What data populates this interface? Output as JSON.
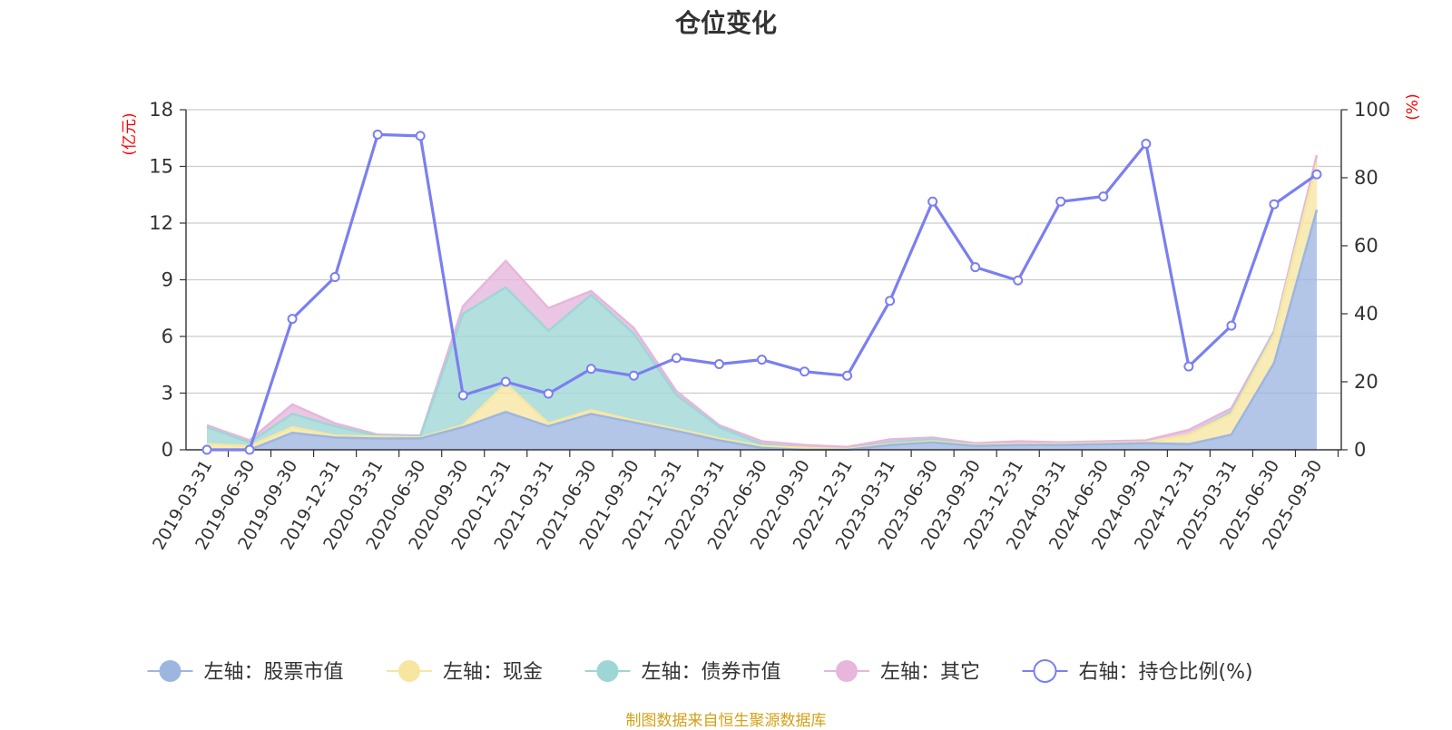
{
  "chart_data": {
    "type": "area",
    "title": "仓位变化",
    "source_note": "制图数据来自恒生聚源数据库",
    "x": [
      "2019-03-31",
      "2019-06-30",
      "2019-09-30",
      "2019-12-31",
      "2020-03-31",
      "2020-06-30",
      "2020-09-30",
      "2020-12-31",
      "2021-03-31",
      "2021-06-30",
      "2021-09-30",
      "2021-12-31",
      "2022-03-31",
      "2022-06-30",
      "2022-09-30",
      "2022-12-31",
      "2023-03-31",
      "2023-06-30",
      "2023-09-30",
      "2023-12-31",
      "2024-03-31",
      "2024-06-30",
      "2024-09-30",
      "2024-12-31",
      "2025-03-31",
      "2025-06-30",
      "2025-09-30"
    ],
    "left_axis": {
      "unit": "(亿元)",
      "ylim": [
        0,
        18
      ],
      "ticks": [
        "0",
        "3",
        "6",
        "9",
        "12",
        "15",
        "18"
      ]
    },
    "right_axis": {
      "unit": "(%)",
      "ylim": [
        0,
        100
      ],
      "ticks": [
        "0",
        "20",
        "40",
        "60",
        "80",
        "100"
      ]
    },
    "stacked": true,
    "grid": true,
    "legend_position": "bottom",
    "series": [
      {
        "name": "左轴：股票市值",
        "axis": "left",
        "kind": "area",
        "color": "#9db6e0",
        "values": [
          0,
          0,
          0.9,
          0.65,
          0.6,
          0.6,
          1.2,
          2.0,
          1.25,
          1.9,
          1.45,
          1.0,
          0.5,
          0.1,
          0.0,
          0.0,
          0.25,
          0.4,
          0.2,
          0.25,
          0.25,
          0.3,
          0.35,
          0.3,
          0.8,
          4.6,
          12.7
        ]
      },
      {
        "name": "左轴：现金",
        "axis": "left",
        "kind": "area",
        "color": "#f7e6a0",
        "values": [
          0.3,
          0.2,
          0.3,
          0.1,
          0.1,
          0.05,
          0.1,
          1.5,
          0.15,
          0.2,
          0.1,
          0.1,
          0.1,
          0.1,
          0.1,
          0.05,
          0.05,
          0.05,
          0.05,
          0.05,
          0.05,
          0.05,
          0.05,
          0.5,
          1.1,
          1.5,
          2.5
        ]
      },
      {
        "name": "左轴：债券市值",
        "axis": "left",
        "kind": "area",
        "color": "#9ed6d6",
        "values": [
          0.9,
          0.2,
          0.7,
          0.5,
          0.05,
          0.05,
          5.9,
          5.1,
          4.9,
          6.1,
          4.6,
          1.8,
          0.6,
          0.1,
          0.0,
          0.0,
          0.1,
          0.1,
          0.0,
          0.0,
          0.0,
          0.0,
          0.0,
          0.0,
          0.1,
          0.1,
          0.0
        ]
      },
      {
        "name": "左轴：其它",
        "axis": "left",
        "kind": "area",
        "color": "#e6b6dc",
        "values": [
          0.1,
          0.1,
          0.5,
          0.15,
          0.05,
          0.05,
          0.4,
          1.4,
          1.2,
          0.2,
          0.3,
          0.2,
          0.1,
          0.15,
          0.15,
          0.1,
          0.15,
          0.1,
          0.1,
          0.15,
          0.1,
          0.1,
          0.1,
          0.25,
          0.2,
          0.1,
          0.4
        ]
      },
      {
        "name": "右轴：持仓比例(%)",
        "axis": "right",
        "kind": "line",
        "color": "#7b7ff0",
        "values": [
          0,
          0,
          38.5,
          50.8,
          92.7,
          92.3,
          16.0,
          20.0,
          16.5,
          23.8,
          21.8,
          27.0,
          25.2,
          26.5,
          23.0,
          21.8,
          43.8,
          73.0,
          53.7,
          49.8,
          73.0,
          74.5,
          90.0,
          24.5,
          36.5,
          72.2,
          81.0
        ]
      }
    ]
  }
}
